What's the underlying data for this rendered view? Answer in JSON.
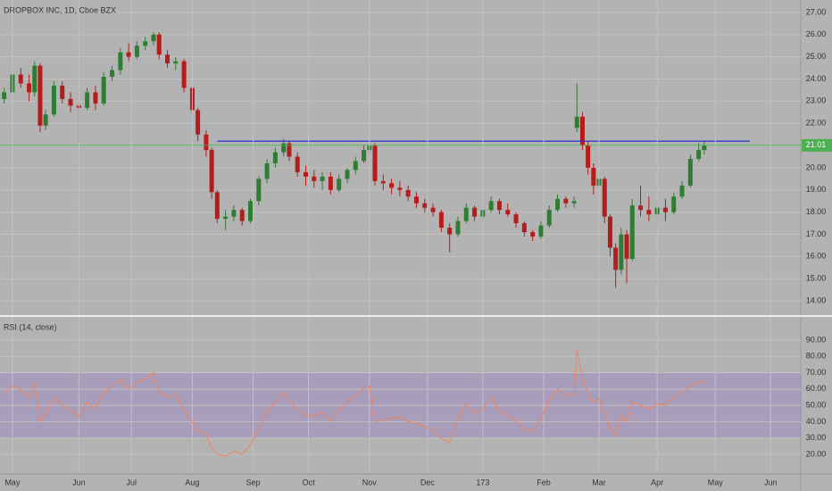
{
  "chart_data": [
    {
      "type": "candlestick",
      "title": "DROPBOX INC, 1D, Cboe BZX",
      "up_color": "#2e7d32",
      "down_color": "#b71c1c",
      "x": [
        0,
        3,
        6,
        9,
        11,
        13,
        15,
        18,
        21,
        24,
        27,
        30,
        33,
        36,
        39,
        42,
        45,
        48,
        51,
        54,
        56,
        59,
        62,
        65,
        68,
        70,
        73,
        75,
        77,
        80,
        83,
        86,
        89,
        92,
        95,
        98,
        101,
        103,
        106,
        109,
        112,
        115,
        118,
        121,
        124,
        127,
        130,
        132,
        134,
        137,
        140,
        143,
        146,
        149,
        152,
        155,
        158,
        161,
        164,
        167,
        170,
        173,
        176,
        179,
        182,
        185,
        188,
        191,
        194,
        197,
        200,
        203,
        206,
        207,
        209,
        211,
        213,
        215,
        217,
        219,
        221,
        223,
        225,
        227,
        230,
        233,
        236,
        239,
        242,
        245,
        248,
        251,
        253
      ],
      "open": [
        23.1,
        23.4,
        24.2,
        23.8,
        23.4,
        24.6,
        21.9,
        22.4,
        23.7,
        23.1,
        22.8,
        22.7,
        23.4,
        22.9,
        24.1,
        24.4,
        25.2,
        25.0,
        25.5,
        25.7,
        26.0,
        25.1,
        24.7,
        24.8,
        23.6,
        22.6,
        21.5,
        20.8,
        18.9,
        17.7,
        17.8,
        18.1,
        17.6,
        18.5,
        19.5,
        20.2,
        20.7,
        21.1,
        20.5,
        19.8,
        19.6,
        19.4,
        19.6,
        19.0,
        19.5,
        19.9,
        20.3,
        20.8,
        21.0,
        19.4,
        19.3,
        19.1,
        19.0,
        18.7,
        18.4,
        18.2,
        18.0,
        17.3,
        17.0,
        17.6,
        18.2,
        17.8,
        18.1,
        18.5,
        18.1,
        17.9,
        17.5,
        17.1,
        16.9,
        17.4,
        18.1,
        18.6,
        18.4,
        21.8,
        22.3,
        21.0,
        20.0,
        19.2,
        19.5,
        17.8,
        16.4,
        15.4,
        17.0,
        15.9,
        18.3,
        18.1,
        17.9,
        18.2,
        18.0,
        18.7,
        19.2,
        20.4,
        20.8
      ],
      "high": [
        23.6,
        24.4,
        24.5,
        24.2,
        24.8,
        24.7,
        22.6,
        23.9,
        23.9,
        23.4,
        23.0,
        23.6,
        23.7,
        24.3,
        24.6,
        25.4,
        25.6,
        25.7,
        25.9,
        26.1,
        26.1,
        25.3,
        25.0,
        24.9,
        23.7,
        22.7,
        21.7,
        20.9,
        19.0,
        18.1,
        18.3,
        18.2,
        18.6,
        19.6,
        20.4,
        20.9,
        21.3,
        21.2,
        20.7,
        20.1,
        19.9,
        19.8,
        19.8,
        19.7,
        20.0,
        20.5,
        21.0,
        21.1,
        21.1,
        19.7,
        19.5,
        19.4,
        19.2,
        18.9,
        18.6,
        18.4,
        18.1,
        17.5,
        17.8,
        18.4,
        18.3,
        18.3,
        18.7,
        18.6,
        18.4,
        18.0,
        17.6,
        17.2,
        17.6,
        18.3,
        18.8,
        18.7,
        18.7,
        23.8,
        22.5,
        21.2,
        20.2,
        19.8,
        19.6,
        17.9,
        16.6,
        17.3,
        17.2,
        18.6,
        19.2,
        18.7,
        18.5,
        18.6,
        18.9,
        19.4,
        20.6,
        21.1,
        21.2
      ],
      "low": [
        22.9,
        23.3,
        23.6,
        23.0,
        23.2,
        21.6,
        21.7,
        22.3,
        22.9,
        22.5,
        21.1,
        22.6,
        22.6,
        22.8,
        23.9,
        24.2,
        24.8,
        24.9,
        25.3,
        25.5,
        24.9,
        24.5,
        24.4,
        23.4,
        22.4,
        21.2,
        20.5,
        18.6,
        17.5,
        17.2,
        17.6,
        17.4,
        17.5,
        18.3,
        19.3,
        20.0,
        20.5,
        20.3,
        19.6,
        19.2,
        19.1,
        19.0,
        18.8,
        18.9,
        19.3,
        19.7,
        20.2,
        20.6,
        19.2,
        19.0,
        18.8,
        18.7,
        18.5,
        18.2,
        18.0,
        17.8,
        17.1,
        16.2,
        16.9,
        17.5,
        17.6,
        17.6,
        18.0,
        17.9,
        17.8,
        17.3,
        16.9,
        16.7,
        16.8,
        17.3,
        18.0,
        18.2,
        18.2,
        21.6,
        20.8,
        19.7,
        18.8,
        19.0,
        17.5,
        16.0,
        14.6,
        15.2,
        14.8,
        15.8,
        17.8,
        17.6,
        17.4,
        17.6,
        17.9,
        18.6,
        19.1,
        20.3,
        20.6
      ],
      "close": [
        23.4,
        24.2,
        23.8,
        23.4,
        24.6,
        21.9,
        22.4,
        23.7,
        23.1,
        22.8,
        22.7,
        23.4,
        22.9,
        24.1,
        24.4,
        25.2,
        25.0,
        25.5,
        25.7,
        26.0,
        25.1,
        24.7,
        24.8,
        23.6,
        22.6,
        21.5,
        20.8,
        18.9,
        17.7,
        17.8,
        18.1,
        17.6,
        18.5,
        19.5,
        20.2,
        20.7,
        21.1,
        20.5,
        19.8,
        19.6,
        19.4,
        19.6,
        19.0,
        19.5,
        19.9,
        20.3,
        20.8,
        21.0,
        19.4,
        19.3,
        19.1,
        19.0,
        18.7,
        18.4,
        18.2,
        18.0,
        17.3,
        17.0,
        17.6,
        18.2,
        17.8,
        18.1,
        18.5,
        18.1,
        17.9,
        17.5,
        17.1,
        16.9,
        17.4,
        18.1,
        18.6,
        18.4,
        18.5,
        22.3,
        21.0,
        20.0,
        19.2,
        19.5,
        17.8,
        16.4,
        15.4,
        17.0,
        15.9,
        18.3,
        18.1,
        17.9,
        18.2,
        18.0,
        18.7,
        19.2,
        20.4,
        20.8,
        21.01
      ],
      "xlim": [
        -1.5,
        287.9
      ],
      "ylim": [
        13.36,
        27.56
      ],
      "yticks": [
        {
          "value": 14,
          "label": "14.00"
        },
        {
          "value": 15,
          "label": "15.00"
        },
        {
          "value": 16,
          "label": "16.00"
        },
        {
          "value": 17,
          "label": "17.00"
        },
        {
          "value": 18,
          "label": "18.00"
        },
        {
          "value": 19,
          "label": "19.00"
        },
        {
          "value": 20,
          "label": "20.00"
        },
        {
          "value": 21,
          "label": "21.00"
        },
        {
          "value": 22,
          "label": "22.00"
        },
        {
          "value": 23,
          "label": "23.00"
        },
        {
          "value": 24,
          "label": "24.00"
        },
        {
          "value": 25,
          "label": "25.00"
        },
        {
          "value": 26,
          "label": "26.00"
        },
        {
          "value": 27,
          "label": "27.00"
        }
      ],
      "trend_line": {
        "value": 21.2,
        "x": [
          77,
          269.5
        ],
        "color": "#2233cc"
      },
      "last_price": {
        "value": 21.01,
        "color": "#4caf50"
      },
      "grid": true
    },
    {
      "type": "line",
      "title": "RSI (14, close)",
      "color": "#f0845a",
      "x": [
        0,
        3,
        6,
        9,
        11,
        13,
        15,
        18,
        21,
        24,
        27,
        30,
        33,
        36,
        39,
        42,
        45,
        48,
        51,
        54,
        56,
        59,
        62,
        65,
        68,
        70,
        73,
        75,
        77,
        80,
        83,
        86,
        89,
        92,
        95,
        98,
        101,
        103,
        106,
        109,
        112,
        115,
        118,
        121,
        124,
        127,
        130,
        132,
        134,
        137,
        140,
        143,
        146,
        149,
        152,
        155,
        158,
        161,
        164,
        167,
        170,
        173,
        176,
        179,
        182,
        185,
        188,
        191,
        194,
        197,
        200,
        203,
        206,
        207,
        209,
        211,
        213,
        215,
        217,
        219,
        221,
        223,
        225,
        227,
        230,
        233,
        236,
        239,
        242,
        245,
        248,
        251,
        253
      ],
      "values": [
        58,
        62,
        60,
        55,
        63,
        40,
        45,
        55,
        50,
        47,
        43,
        52,
        48,
        58,
        62,
        66,
        60,
        64,
        66,
        70,
        58,
        55,
        57,
        47,
        40,
        35,
        32,
        24,
        20,
        19,
        22,
        20,
        26,
        35,
        46,
        52,
        58,
        53,
        47,
        44,
        43,
        46,
        40,
        47,
        52,
        56,
        60,
        62,
        40,
        41,
        42,
        43,
        40,
        39,
        37,
        35,
        30,
        27,
        42,
        51,
        45,
        48,
        55,
        47,
        44,
        40,
        36,
        34,
        42,
        53,
        60,
        56,
        57,
        84,
        66,
        57,
        52,
        54,
        44,
        36,
        31,
        44,
        40,
        52,
        50,
        48,
        51,
        50,
        55,
        58,
        62,
        64,
        65
      ],
      "band": [
        30,
        70
      ],
      "band_color": "rgba(140,100,210,0.28)",
      "xlim": [
        -1.5,
        287.9
      ],
      "ylim": [
        8.5,
        104.2
      ],
      "yticks": [
        {
          "value": 20,
          "label": "20.00"
        },
        {
          "value": 30,
          "label": "30.00"
        },
        {
          "value": 40,
          "label": "40.00"
        },
        {
          "value": 50,
          "label": "50.00"
        },
        {
          "value": 60,
          "label": "60.00"
        },
        {
          "value": 70,
          "label": "70.00"
        },
        {
          "value": 80,
          "label": "80.00"
        },
        {
          "value": 90,
          "label": "90.00"
        }
      ],
      "xticks": [
        {
          "value": 3,
          "label": "May"
        },
        {
          "value": 27,
          "label": "Jun"
        },
        {
          "value": 46,
          "label": "Jul"
        },
        {
          "value": 68,
          "label": "Aug"
        },
        {
          "value": 90,
          "label": "Sep"
        },
        {
          "value": 110,
          "label": "Oct"
        },
        {
          "value": 132,
          "label": "Nov"
        },
        {
          "value": 153,
          "label": "Dec"
        },
        173,
        {
          "value": 195,
          "label": "Feb"
        },
        {
          "value": 215,
          "label": "Mar"
        },
        {
          "value": 236,
          "label": "Apr"
        },
        {
          "value": 257,
          "label": "May"
        },
        {
          "value": 277,
          "label": "Jun"
        }
      ],
      "grid": true
    }
  ]
}
